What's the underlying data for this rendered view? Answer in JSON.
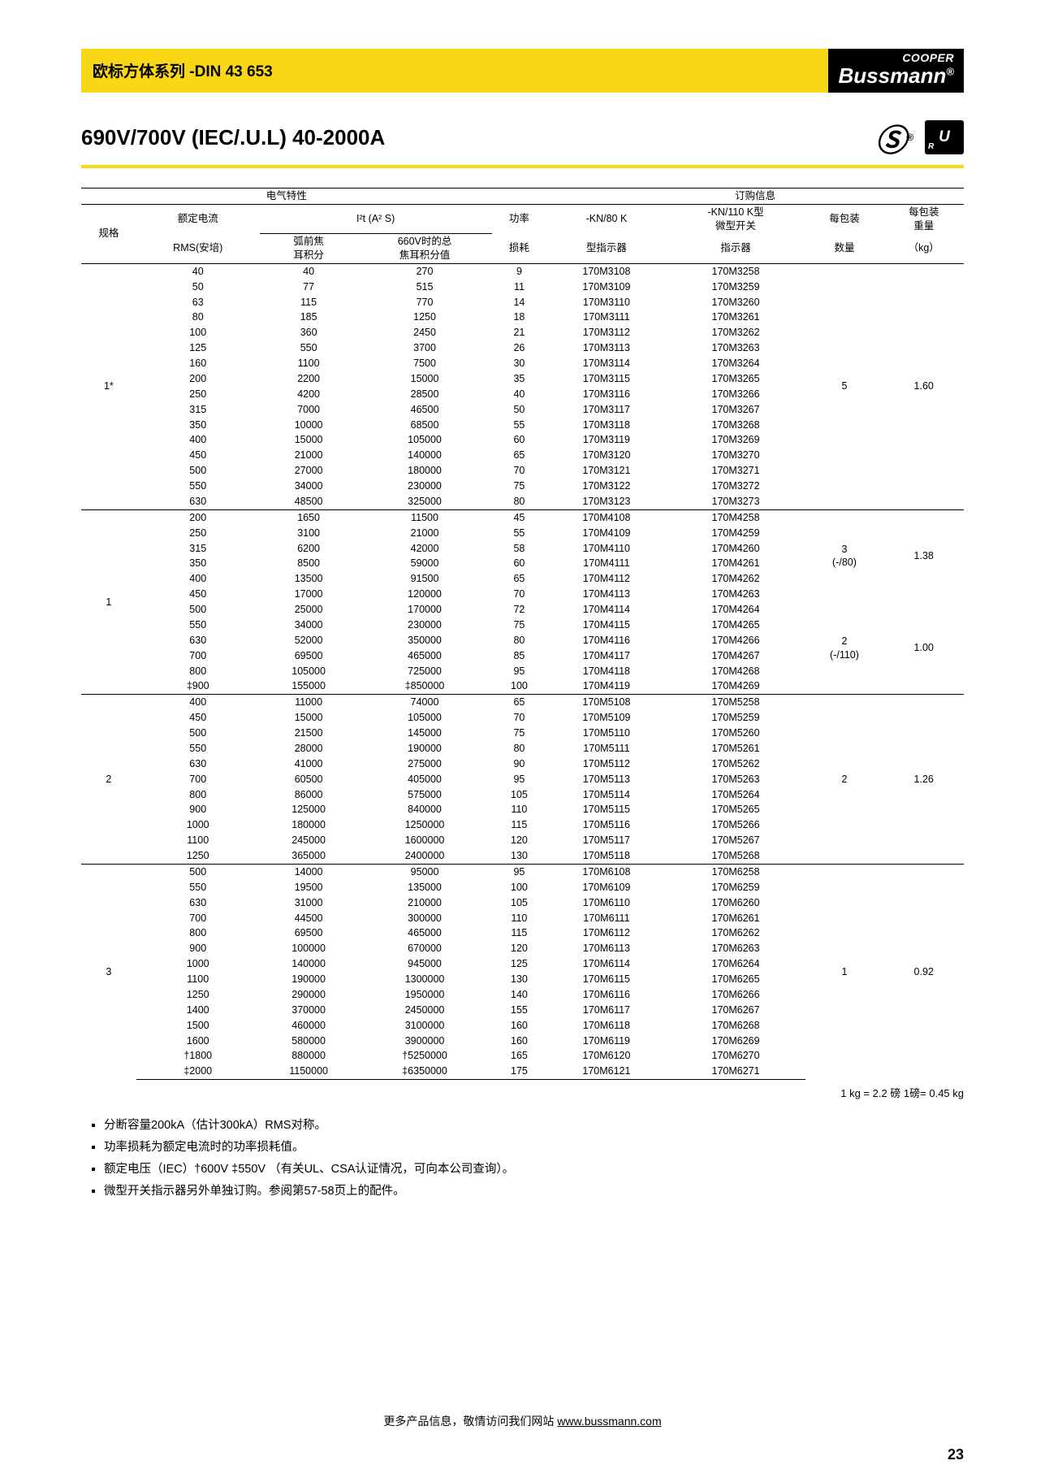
{
  "header": {
    "title": "欧标方体系列 -DIN 43 653",
    "brand_top": "COOPER",
    "brand_main": "Bussmann",
    "brand_reg": "®"
  },
  "heading": "690V/700V (IEC/.U.L)  40-2000A",
  "cert": {
    "csa": "SP",
    "ul": "ᵣU"
  },
  "table": {
    "sec_elec": "电气特性",
    "sec_order": "订购信息",
    "col_spec": "规格",
    "col_current_l1": "额定电流",
    "col_current_l2": "RMS(安培)",
    "col_i2t": "I²t (A² S)",
    "col_i2t_sub1_l1": "弧前焦",
    "col_i2t_sub1_l2": "耳积分",
    "col_i2t_sub2_l1": "660V时的总",
    "col_i2t_sub2_l2": "焦耳积分值",
    "col_power_l1": "功率",
    "col_power_l2": "损耗",
    "col_kn80_l1": "-KN/80 K",
    "col_kn80_l2": "型指示器",
    "col_kn110_l1": "-KN/110 K型",
    "col_kn110_l2": "微型开关",
    "col_kn110_l3": "指示器",
    "col_qty_l1": "每包装",
    "col_qty_l2": "数量",
    "col_weight_l1": "每包装",
    "col_weight_l2": "重量",
    "col_weight_l3": "（kg）",
    "groups": [
      {
        "spec": "1*",
        "pack": [
          [
            "5",
            "1.60"
          ]
        ],
        "rows": [
          [
            "40",
            "40",
            "270",
            "9",
            "170M3108",
            "170M3258"
          ],
          [
            "50",
            "77",
            "515",
            "11",
            "170M3109",
            "170M3259"
          ],
          [
            "63",
            "115",
            "770",
            "14",
            "170M3110",
            "170M3260"
          ],
          [
            "80",
            "185",
            "1250",
            "18",
            "170M3111",
            "170M3261"
          ],
          [
            "100",
            "360",
            "2450",
            "21",
            "170M3112",
            "170M3262"
          ],
          [
            "125",
            "550",
            "3700",
            "26",
            "170M3113",
            "170M3263"
          ],
          [
            "160",
            "1100",
            "7500",
            "30",
            "170M3114",
            "170M3264"
          ],
          [
            "200",
            "2200",
            "15000",
            "35",
            "170M3115",
            "170M3265"
          ],
          [
            "250",
            "4200",
            "28500",
            "40",
            "170M3116",
            "170M3266"
          ],
          [
            "315",
            "7000",
            "46500",
            "50",
            "170M3117",
            "170M3267"
          ],
          [
            "350",
            "10000",
            "68500",
            "55",
            "170M3118",
            "170M3268"
          ],
          [
            "400",
            "15000",
            "105000",
            "60",
            "170M3119",
            "170M3269"
          ],
          [
            "450",
            "21000",
            "140000",
            "65",
            "170M3120",
            "170M3270"
          ],
          [
            "500",
            "27000",
            "180000",
            "70",
            "170M3121",
            "170M3271"
          ],
          [
            "550",
            "34000",
            "230000",
            "75",
            "170M3122",
            "170M3272"
          ],
          [
            "630",
            "48500",
            "325000",
            "80",
            "170M3123",
            "170M3273"
          ]
        ]
      },
      {
        "spec": "1",
        "pack": [
          [
            "3\n(-/80)",
            "1.38"
          ],
          [
            "2\n(-/110)",
            "1.00"
          ]
        ],
        "rows": [
          [
            "200",
            "1650",
            "11500",
            "45",
            "170M4108",
            "170M4258"
          ],
          [
            "250",
            "3100",
            "21000",
            "55",
            "170M4109",
            "170M4259"
          ],
          [
            "315",
            "6200",
            "42000",
            "58",
            "170M4110",
            "170M4260"
          ],
          [
            "350",
            "8500",
            "59000",
            "60",
            "170M4111",
            "170M4261"
          ],
          [
            "400",
            "13500",
            "91500",
            "65",
            "170M4112",
            "170M4262"
          ],
          [
            "450",
            "17000",
            "120000",
            "70",
            "170M4113",
            "170M4263"
          ],
          [
            "500",
            "25000",
            "170000",
            "72",
            "170M4114",
            "170M4264"
          ],
          [
            "550",
            "34000",
            "230000",
            "75",
            "170M4115",
            "170M4265"
          ],
          [
            "630",
            "52000",
            "350000",
            "80",
            "170M4116",
            "170M4266"
          ],
          [
            "700",
            "69500",
            "465000",
            "85",
            "170M4117",
            "170M4267"
          ],
          [
            "800",
            "105000",
            "725000",
            "95",
            "170M4118",
            "170M4268"
          ],
          [
            "‡900",
            "155000",
            "‡850000",
            "100",
            "170M4119",
            "170M4269"
          ]
        ]
      },
      {
        "spec": "2",
        "pack": [
          [
            "2",
            "1.26"
          ]
        ],
        "rows": [
          [
            "400",
            "11000",
            "74000",
            "65",
            "170M5108",
            "170M5258"
          ],
          [
            "450",
            "15000",
            "105000",
            "70",
            "170M5109",
            "170M5259"
          ],
          [
            "500",
            "21500",
            "145000",
            "75",
            "170M5110",
            "170M5260"
          ],
          [
            "550",
            "28000",
            "190000",
            "80",
            "170M5111",
            "170M5261"
          ],
          [
            "630",
            "41000",
            "275000",
            "90",
            "170M5112",
            "170M5262"
          ],
          [
            "700",
            "60500",
            "405000",
            "95",
            "170M5113",
            "170M5263"
          ],
          [
            "800",
            "86000",
            "575000",
            "105",
            "170M5114",
            "170M5264"
          ],
          [
            "900",
            "125000",
            "840000",
            "110",
            "170M5115",
            "170M5265"
          ],
          [
            "1000",
            "180000",
            "1250000",
            "115",
            "170M5116",
            "170M5266"
          ],
          [
            "1100",
            "245000",
            "1600000",
            "120",
            "170M5117",
            "170M5267"
          ],
          [
            "1250",
            "365000",
            "2400000",
            "130",
            "170M5118",
            "170M5268"
          ]
        ]
      },
      {
        "spec": "3",
        "pack": [
          [
            "1",
            "0.92"
          ]
        ],
        "rows": [
          [
            "500",
            "14000",
            "95000",
            "95",
            "170M6108",
            "170M6258"
          ],
          [
            "550",
            "19500",
            "135000",
            "100",
            "170M6109",
            "170M6259"
          ],
          [
            "630",
            "31000",
            "210000",
            "105",
            "170M6110",
            "170M6260"
          ],
          [
            "700",
            "44500",
            "300000",
            "110",
            "170M6111",
            "170M6261"
          ],
          [
            "800",
            "69500",
            "465000",
            "115",
            "170M6112",
            "170M6262"
          ],
          [
            "900",
            "100000",
            "670000",
            "120",
            "170M6113",
            "170M6263"
          ],
          [
            "1000",
            "140000",
            "945000",
            "125",
            "170M6114",
            "170M6264"
          ],
          [
            "1100",
            "190000",
            "1300000",
            "130",
            "170M6115",
            "170M6265"
          ],
          [
            "1250",
            "290000",
            "1950000",
            "140",
            "170M6116",
            "170M6266"
          ],
          [
            "1400",
            "370000",
            "2450000",
            "155",
            "170M6117",
            "170M6267"
          ],
          [
            "1500",
            "460000",
            "3100000",
            "160",
            "170M6118",
            "170M6268"
          ],
          [
            "1600",
            "580000",
            "3900000",
            "160",
            "170M6119",
            "170M6269"
          ],
          [
            "†1800",
            "880000",
            "†5250000",
            "165",
            "170M6120",
            "170M6270"
          ],
          [
            "‡2000",
            "1150000",
            "‡6350000",
            "175",
            "170M6121",
            "170M6271"
          ]
        ]
      }
    ]
  },
  "footnote": "1 kg = 2.2 磅    1磅= 0.45 kg",
  "notes": [
    "分断容量200kA（估计300kA）RMS对称。",
    "功率损耗为额定电流时的功率损耗值。",
    "额定电压（IEC）†600V  ‡550V  （有关UL、CSA认证情况，可向本公司查询）。",
    "微型开关指示器另外单独订购。参阅第57-58页上的配件。"
  ],
  "footer": {
    "text": "更多产品信息，敬情访问我们网站 ",
    "url": "www.bussmann.com",
    "page": "23"
  }
}
